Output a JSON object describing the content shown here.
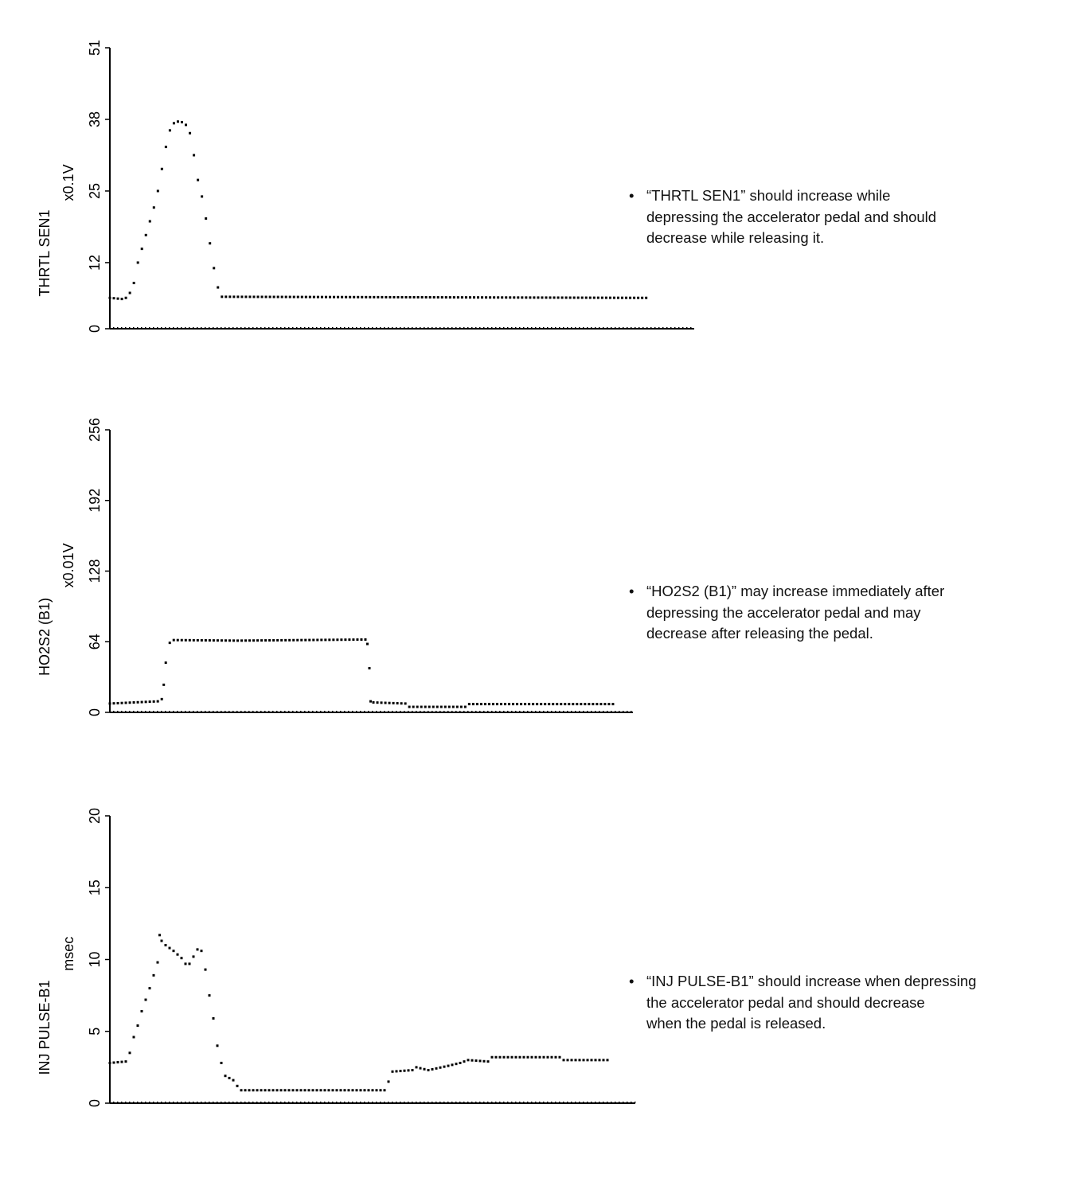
{
  "chart_data": [
    {
      "type": "scatter",
      "ylabel": "THRTL SEN1",
      "unit": "x0.1V",
      "yticks": [
        0,
        12,
        25,
        38,
        51
      ],
      "ylim": [
        0,
        51
      ],
      "xlim": [
        0,
        146
      ],
      "series": [
        {
          "name": "THRTL SEN1",
          "points": [
            [
              0,
              5.6
            ],
            [
              3,
              5.4
            ],
            [
              4,
              5.6
            ],
            [
              5,
              6.5
            ],
            [
              6,
              8.3
            ],
            [
              7,
              12
            ],
            [
              8,
              14.5
            ],
            [
              9,
              17
            ],
            [
              10,
              19.5
            ],
            [
              11,
              22
            ],
            [
              12,
              25
            ],
            [
              13,
              29
            ],
            [
              14,
              33
            ],
            [
              15,
              36
            ],
            [
              16,
              37.3
            ],
            [
              17,
              37.6
            ],
            [
              18,
              37.5
            ],
            [
              19,
              37
            ],
            [
              20,
              35.5
            ],
            [
              21,
              31.5
            ],
            [
              22,
              27
            ],
            [
              23,
              24
            ],
            [
              24,
              20
            ],
            [
              25,
              15.5
            ],
            [
              26,
              11
            ],
            [
              27,
              7.5
            ],
            [
              28,
              5.8
            ],
            [
              134,
              5.6
            ]
          ]
        }
      ],
      "note": "“THRTL SEN1” should increase while depressing the accelerator pedal and should decrease while releasing it."
    },
    {
      "type": "scatter",
      "ylabel": "HO2S2 (B1)",
      "unit": "x0.01V",
      "yticks": [
        0,
        64,
        128,
        192,
        256
      ],
      "ylim": [
        0,
        256
      ],
      "xlim": [
        0,
        131
      ],
      "series": [
        {
          "name": "HO2S2 (B1)",
          "points": [
            [
              0,
              8
            ],
            [
              12,
              10
            ],
            [
              13,
              12
            ],
            [
              13.5,
              25
            ],
            [
              14,
              45
            ],
            [
              15,
              63
            ],
            [
              16,
              65.5
            ],
            [
              32,
              65
            ],
            [
              64,
              66
            ],
            [
              64.5,
              62
            ],
            [
              65,
              40
            ],
            [
              65.3,
              10
            ],
            [
              66,
              9
            ],
            [
              74,
              8
            ],
            [
              75,
              5
            ],
            [
              89,
              5
            ],
            [
              90,
              7.5
            ],
            [
              126,
              7.5
            ]
          ]
        }
      ],
      "note": "“HO2S2 (B1)” may increase immediately after depressing the accelerator pedal and may decrease after releasing the pedal."
    },
    {
      "type": "scatter",
      "ylabel": "INJ PULSE-B1",
      "unit": "msec",
      "yticks": [
        0,
        5,
        10,
        15,
        20
      ],
      "ylim": [
        0,
        20
      ],
      "xlim": [
        0,
        132
      ],
      "series": [
        {
          "name": "INJ PULSE-B1",
          "points": [
            [
              0,
              2.8
            ],
            [
              4,
              2.9
            ],
            [
              5,
              3.5
            ],
            [
              6,
              4.6
            ],
            [
              7,
              5.4
            ],
            [
              8,
              6.4
            ],
            [
              9,
              7.2
            ],
            [
              10,
              8
            ],
            [
              11,
              8.9
            ],
            [
              12,
              9.8
            ],
            [
              12.5,
              11.7
            ],
            [
              13,
              11.3
            ],
            [
              14,
              11
            ],
            [
              16,
              10.6
            ],
            [
              18,
              10.1
            ],
            [
              19,
              9.7
            ],
            [
              20,
              9.7
            ],
            [
              21,
              10.2
            ],
            [
              22,
              10.7
            ],
            [
              23,
              10.6
            ],
            [
              24,
              9.3
            ],
            [
              25,
              7.5
            ],
            [
              26,
              5.9
            ],
            [
              27,
              4
            ],
            [
              28,
              2.8
            ],
            [
              29,
              1.9
            ],
            [
              31,
              1.6
            ],
            [
              32,
              1.2
            ],
            [
              33,
              0.9
            ],
            [
              69,
              0.9
            ],
            [
              70,
              1.5
            ],
            [
              71,
              2.2
            ],
            [
              76,
              2.3
            ],
            [
              77,
              2.5
            ],
            [
              80,
              2.3
            ],
            [
              85,
              2.6
            ],
            [
              88,
              2.8
            ],
            [
              90,
              3
            ],
            [
              95,
              2.9
            ],
            [
              96,
              3.2
            ],
            [
              113,
              3.2
            ],
            [
              114,
              3
            ],
            [
              125,
              3
            ]
          ]
        }
      ],
      "note": "“INJ PULSE-B1” should increase when depressing the accelerator pedal and should decrease when the pedal is released."
    }
  ],
  "notes": {
    "bullet": "•",
    "n1": [
      "“THRTL SEN1” should increase while",
      "depressing the accelerator pedal and should",
      "decrease while releasing it."
    ],
    "n2": [
      "“HO2S2 (B1)” may increase immediately after",
      "depressing the accelerator pedal and may",
      "decrease after releasing the pedal."
    ],
    "n3": [
      "“INJ PULSE-B1” should increase when depressing",
      "the accelerator pedal and should decrease",
      "when the pedal is released."
    ]
  }
}
